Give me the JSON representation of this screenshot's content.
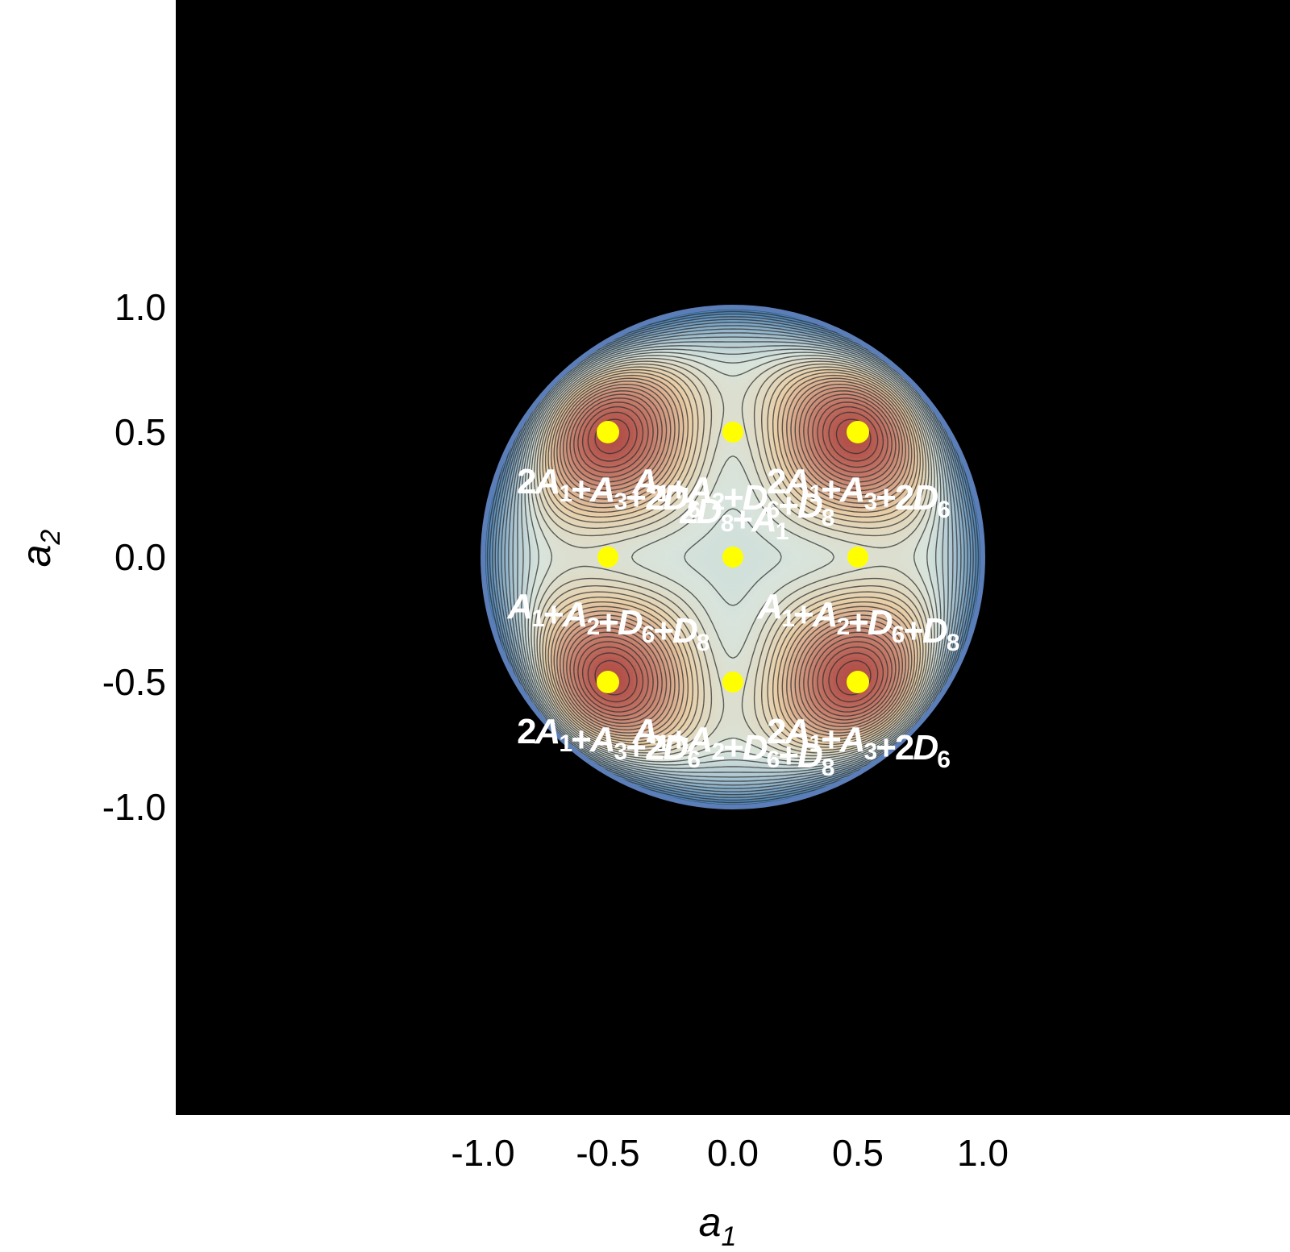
{
  "chart_data": {
    "type": "contour",
    "title": "",
    "xlabel": "a",
    "xlabel_sub": "1",
    "ylabel": "a",
    "ylabel_sub": "2",
    "xlim": [
      -1.1,
      1.1
    ],
    "ylim": [
      -1.1,
      1.1
    ],
    "xticks": [
      "-1.0",
      "-0.5",
      "0.0",
      "0.5",
      "1.0"
    ],
    "xtick_values": [
      -1.0,
      -0.5,
      0.0,
      0.5,
      1.0
    ],
    "yticks": [
      "1.0",
      "0.5",
      "0.0",
      "-0.5",
      "-1.0"
    ],
    "ytick_values": [
      1.0,
      0.5,
      0.0,
      -0.5,
      -1.0
    ],
    "domain_boundary": {
      "shape": "circle",
      "center": [
        0,
        0
      ],
      "radius": 1.0,
      "color": "#5b7db8"
    },
    "background_color": "#000000",
    "colormap": [
      "#3a78b4",
      "#d8e4dc",
      "#e8cfa8",
      "#b14e48"
    ],
    "grid": false,
    "point_color": "#ffff00",
    "points": [
      {
        "x": -0.5,
        "y": 0.5,
        "size": "large",
        "label": [
          [
            "2",
            ""
          ],
          [
            "A",
            "1"
          ],
          [
            "+",
            ""
          ],
          [
            "A",
            "3"
          ],
          [
            "+2",
            ""
          ],
          [
            "D",
            "6"
          ]
        ]
      },
      {
        "x": 0.0,
        "y": 0.5,
        "size": "small",
        "label": [
          [
            "A",
            "1"
          ],
          [
            "+",
            ""
          ],
          [
            "A",
            "2"
          ],
          [
            "+",
            ""
          ],
          [
            "D",
            "6"
          ],
          [
            "+",
            ""
          ],
          [
            "D",
            "8"
          ]
        ]
      },
      {
        "x": 0.5,
        "y": 0.5,
        "size": "large",
        "label": [
          [
            "2",
            ""
          ],
          [
            "A",
            "1"
          ],
          [
            "+",
            ""
          ],
          [
            "A",
            "3"
          ],
          [
            "+2",
            ""
          ],
          [
            "D",
            "6"
          ]
        ]
      },
      {
        "x": -0.5,
        "y": 0.0,
        "size": "small",
        "label": [
          [
            "A",
            "1"
          ],
          [
            "+",
            ""
          ],
          [
            "A",
            "2"
          ],
          [
            "+",
            ""
          ],
          [
            "D",
            "6"
          ],
          [
            "+",
            ""
          ],
          [
            "D",
            "8"
          ]
        ]
      },
      {
        "x": 0.0,
        "y": 0.0,
        "size": "small",
        "label": [
          [
            "2",
            ""
          ],
          [
            "D",
            "8"
          ],
          [
            "+",
            ""
          ],
          [
            "A",
            "1"
          ]
        ],
        "label_pos": "above"
      },
      {
        "x": 0.5,
        "y": 0.0,
        "size": "small",
        "label": [
          [
            "A",
            "1"
          ],
          [
            "+",
            ""
          ],
          [
            "A",
            "2"
          ],
          [
            "+",
            ""
          ],
          [
            "D",
            "6"
          ],
          [
            "+",
            ""
          ],
          [
            "D",
            "8"
          ]
        ]
      },
      {
        "x": -0.5,
        "y": -0.5,
        "size": "large",
        "label": [
          [
            "2",
            ""
          ],
          [
            "A",
            "1"
          ],
          [
            "+",
            ""
          ],
          [
            "A",
            "3"
          ],
          [
            "+2",
            ""
          ],
          [
            "D",
            "6"
          ]
        ]
      },
      {
        "x": 0.0,
        "y": -0.5,
        "size": "small",
        "label": [
          [
            "A",
            "1"
          ],
          [
            "+",
            ""
          ],
          [
            "A",
            "2"
          ],
          [
            "+",
            ""
          ],
          [
            "D",
            "6"
          ],
          [
            "+",
            ""
          ],
          [
            "D",
            "8"
          ]
        ]
      },
      {
        "x": 0.5,
        "y": -0.5,
        "size": "large",
        "label": [
          [
            "2",
            ""
          ],
          [
            "A",
            "1"
          ],
          [
            "+",
            ""
          ],
          [
            "A",
            "3"
          ],
          [
            "+2",
            ""
          ],
          [
            "D",
            "6"
          ]
        ]
      }
    ]
  }
}
